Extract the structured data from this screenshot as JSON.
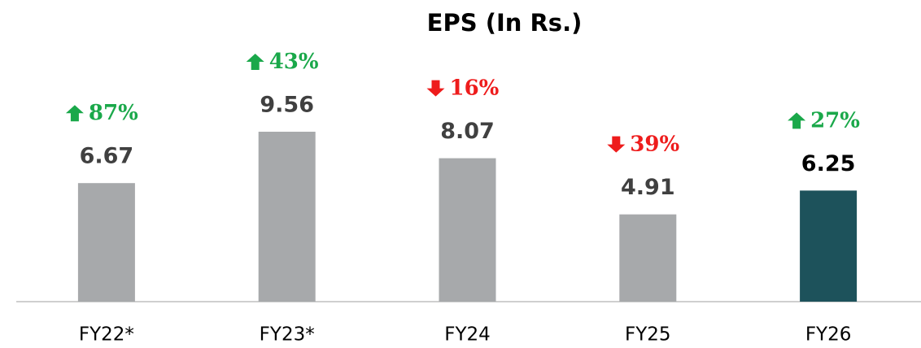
{
  "chart_data": {
    "type": "bar",
    "title": "EPS (In Rs.)",
    "categories": [
      "FY22*",
      "FY23*",
      "FY24",
      "FY25",
      "FY26"
    ],
    "values": [
      6.67,
      9.56,
      8.07,
      4.91,
      6.25
    ],
    "colors": [
      "#a7a9ab",
      "#a7a9ab",
      "#a7a9ab",
      "#a7a9ab",
      "#1d525b"
    ],
    "value_label_colors": [
      "#404040",
      "#404040",
      "#404040",
      "#404040",
      "#000000"
    ],
    "growth": [
      {
        "value": 87,
        "label": "87%"
      },
      {
        "value": 43,
        "label": "43%"
      },
      {
        "value": 16,
        "label": "16%"
      },
      {
        "value": 39,
        "label": "39%"
      },
      {
        "value": 27,
        "label": "27%"
      }
    ],
    "growth_direction": [
      "up",
      "up",
      "down",
      "down",
      "up"
    ],
    "growth_colors": {
      "up": "#1aa84a",
      "down": "#ee1c1c"
    },
    "ylim": [
      0,
      10
    ]
  }
}
